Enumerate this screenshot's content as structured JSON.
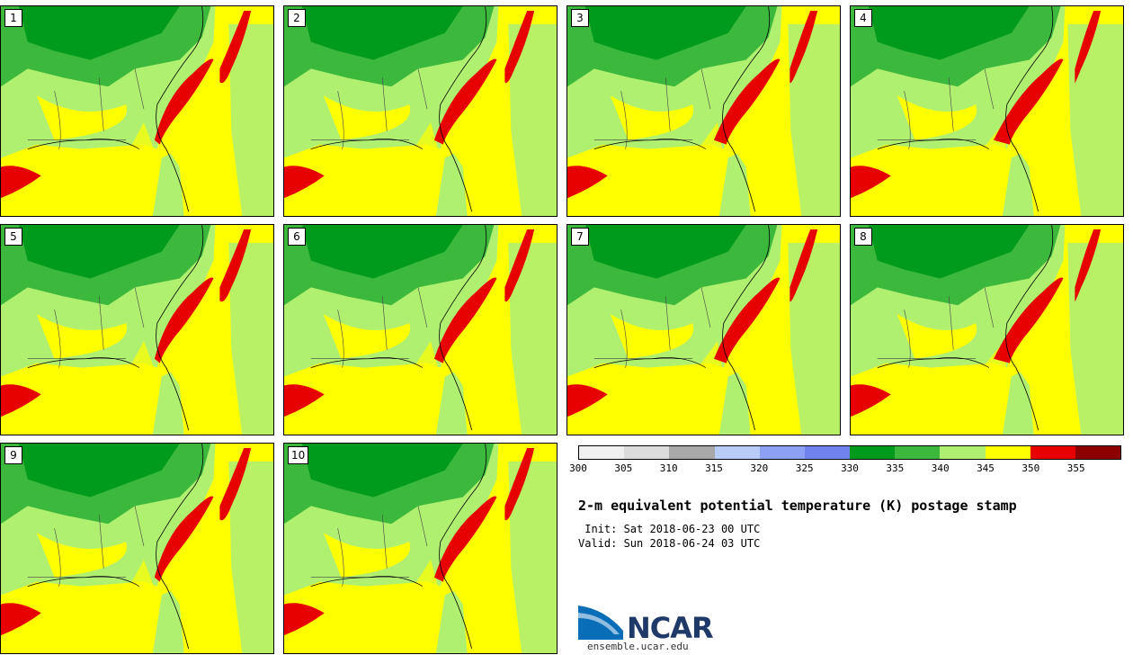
{
  "members": [
    {
      "label": "1"
    },
    {
      "label": "2"
    },
    {
      "label": "3"
    },
    {
      "label": "4"
    },
    {
      "label": "5"
    },
    {
      "label": "6"
    },
    {
      "label": "7"
    },
    {
      "label": "8"
    },
    {
      "label": "9"
    },
    {
      "label": "10"
    }
  ],
  "colorbar": {
    "colors": [
      "#f0f0f0",
      "#dcdcdc",
      "#a8a8a8",
      "#b8ccf8",
      "#8ca0f4",
      "#7082ee",
      "#009b1c",
      "#3cb83c",
      "#b0f070",
      "#ffff00",
      "#e60000",
      "#8c0000"
    ],
    "ticks": [
      "300",
      "305",
      "310",
      "315",
      "320",
      "325",
      "330",
      "335",
      "340",
      "345",
      "350",
      "355"
    ]
  },
  "title": "2-m equivalent potential temperature (K) postage stamp",
  "init": " Init: Sat 2018-06-23 00 UTC",
  "valid": "Valid: Sun 2018-06-24 03 UTC",
  "logo": {
    "name": "NCAR",
    "site": "ensemble.ucar.edu"
  },
  "map_colors": {
    "ocean_warm": "#ffff00",
    "land_mid": "#b0f070",
    "land_cool": "#3cb83c",
    "land_cold": "#009b1c",
    "gulf_stream": "#e60000",
    "cool_spot": "#7082ee"
  }
}
